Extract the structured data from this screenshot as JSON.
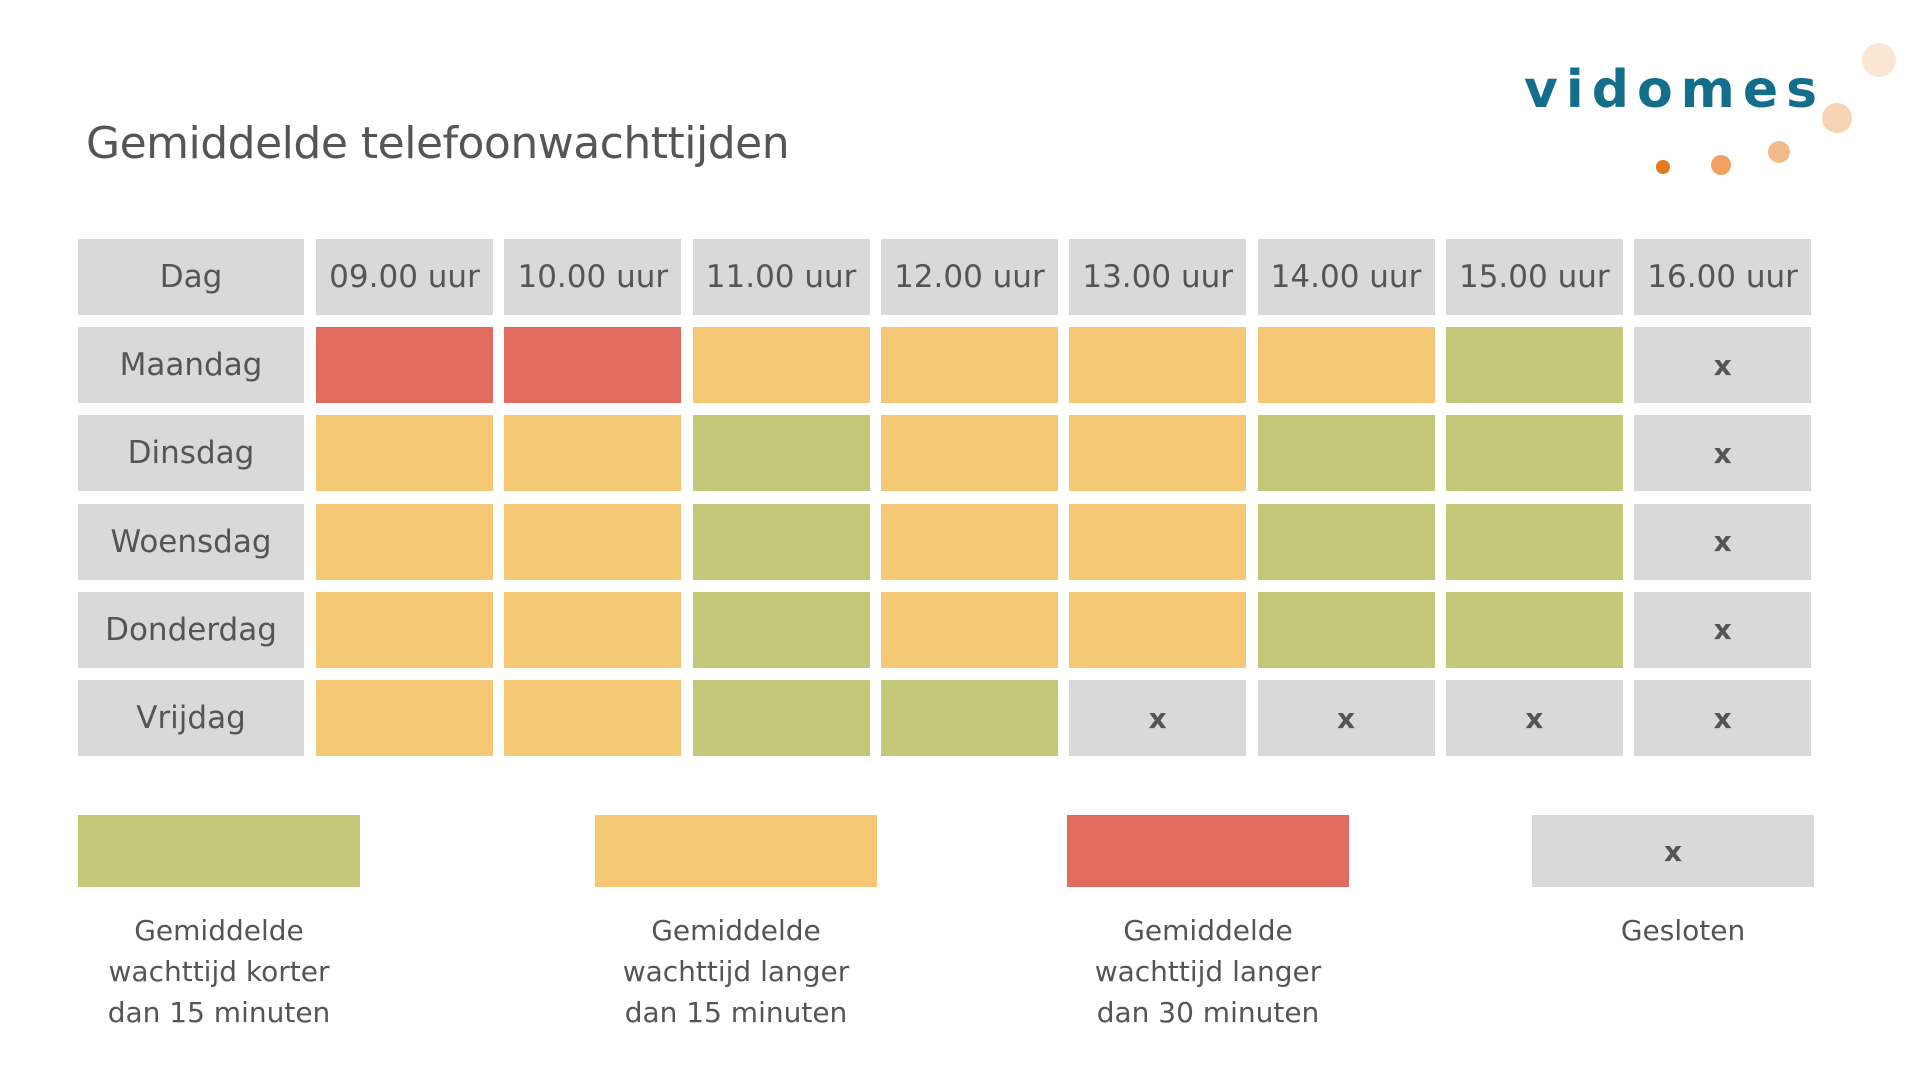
{
  "title": "Gemiddelde telefoonwachttijden",
  "logo": {
    "text": "vidomes"
  },
  "colors": {
    "green": "#c5c878",
    "orange": "#f4c875",
    "red": "#e06b5e",
    "closed": "#d9d9d9",
    "header": "#d9d9d9",
    "logo": "#136e8c"
  },
  "table": {
    "header": [
      "Dag",
      "09.00 uur",
      "10.00 uur",
      "11.00 uur",
      "12.00 uur",
      "13.00 uur",
      "14.00 uur",
      "15.00 uur",
      "16.00 uur"
    ],
    "rows": [
      {
        "day": "Maandag",
        "cells": [
          "red",
          "red",
          "orange",
          "orange",
          "orange",
          "orange",
          "green",
          "closed"
        ]
      },
      {
        "day": "Dinsdag",
        "cells": [
          "orange",
          "orange",
          "green",
          "orange",
          "orange",
          "green",
          "green",
          "closed"
        ]
      },
      {
        "day": "Woensdag",
        "cells": [
          "orange",
          "orange",
          "green",
          "orange",
          "orange",
          "green",
          "green",
          "closed"
        ]
      },
      {
        "day": "Donderdag",
        "cells": [
          "orange",
          "orange",
          "green",
          "orange",
          "orange",
          "green",
          "green",
          "closed"
        ]
      },
      {
        "day": "Vrijdag",
        "cells": [
          "orange",
          "orange",
          "green",
          "green",
          "closed",
          "closed",
          "closed",
          "closed"
        ]
      }
    ],
    "closed_mark": "x"
  },
  "legend": [
    {
      "status": "green",
      "label": "Gemiddelde wachttijd korter dan 15 minuten"
    },
    {
      "status": "orange",
      "label": "Gemiddelde wachttijd langer dan 15 minuten"
    },
    {
      "status": "red",
      "label": "Gemiddelde wachttijd langer dan 30 minuten"
    },
    {
      "status": "closed",
      "label": "Gesloten",
      "mark": "x"
    }
  ]
}
